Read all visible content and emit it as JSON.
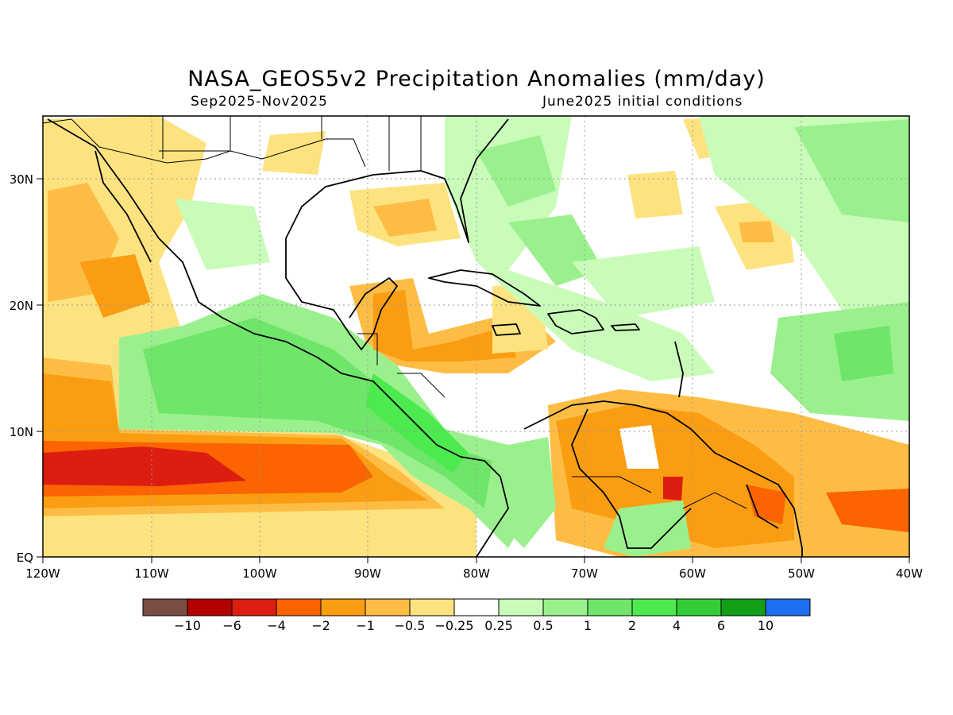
{
  "title": "NASA_GEOS5v2 Precipitation Anomalies (mm/day)",
  "period": "Sep2025-Nov2025",
  "init": "June2025 initial conditions",
  "map": {
    "lon_labels": [
      "120W",
      "110W",
      "100W",
      "90W",
      "80W",
      "70W",
      "60W",
      "50W",
      "40W"
    ],
    "lat_labels": [
      "EQ",
      "10N",
      "20N",
      "30N"
    ],
    "lon_range": [
      -120,
      -40
    ],
    "lat_range": [
      0,
      35
    ],
    "grid": "dotted"
  },
  "colorbar": {
    "colors": [
      "#7b4c44",
      "#b30000",
      "#dc1e10",
      "#fb6400",
      "#fb9d12",
      "#fdbd45",
      "#fde37f",
      "#ffffff",
      "#c9fbb9",
      "#9bf08e",
      "#6fe56a",
      "#4cea4f",
      "#34cd39",
      "#14a016",
      "#1e6ef0"
    ],
    "labels": [
      "-10",
      "-6",
      "-4",
      "-2",
      "-1",
      "-0.5",
      "-0.25",
      "0.25",
      "0.5",
      "1",
      "2",
      "4",
      "6",
      "10"
    ]
  },
  "legend_colors": {
    "dry_strong": "#dc1e10",
    "dry": "#fb6400",
    "dry_moderate": "#fb9d12",
    "dry_weak": "#fde37f",
    "wet_weak": "#c9fbb9",
    "wet": "#6fe56a",
    "wet_strong": "#34cd39"
  }
}
